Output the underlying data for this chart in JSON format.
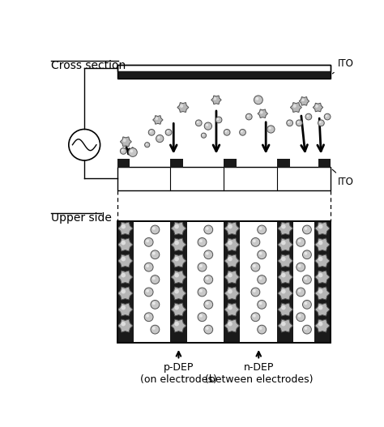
{
  "title_cross": "Cross section",
  "title_upper": "Upper side",
  "label_ITO_top": "ITO",
  "label_ITO_bot": "ITO",
  "label_pDEP": "p-DEP\n(on electrodes)",
  "label_nDEP": "n-DEP\n(between electrodes)",
  "bg_color": "#ffffff",
  "electrode_color": "#1a1a1a",
  "box_line_color": "#000000"
}
